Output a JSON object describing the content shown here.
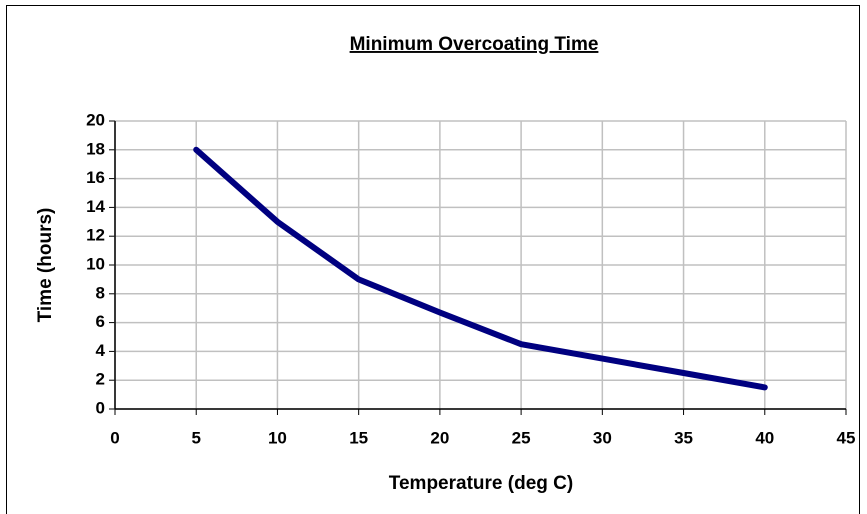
{
  "chart_data": {
    "type": "line",
    "title": "Minimum Overcoating Time",
    "x_label": "Temperature (deg C)",
    "y_label": "Time (hours)",
    "x": [
      5,
      10,
      15,
      20,
      25,
      30,
      35,
      40
    ],
    "series": [
      {
        "name": "Minimum Overcoating Time",
        "color": "#000080",
        "values": [
          18,
          13,
          9,
          6.7,
          4.5,
          3.5,
          2.5,
          1.5
        ]
      }
    ],
    "xlim": [
      0,
      45
    ],
    "xticks": [
      0,
      5,
      10,
      15,
      20,
      25,
      30,
      35,
      40,
      45
    ],
    "ylim": [
      0,
      20
    ],
    "yticks": [
      0,
      2,
      4,
      6,
      8,
      10,
      12,
      14,
      16,
      18,
      20
    ],
    "grid": true,
    "legend": false
  }
}
